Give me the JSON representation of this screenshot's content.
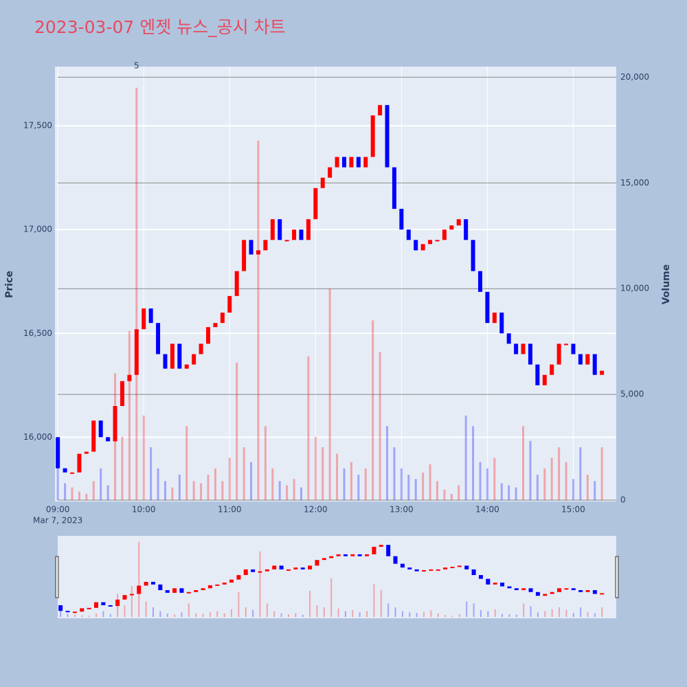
{
  "chart_data": {
    "type": "candlestick",
    "title": "2023-03-07 엔젯 뉴스_공시 차트",
    "subtitle": "Mar 7, 2023",
    "y_label": "Price",
    "y2_label": "Volume",
    "x": [
      "09:00",
      "09:05",
      "09:10",
      "09:15",
      "09:20",
      "09:25",
      "09:30",
      "09:35",
      "09:40",
      "09:45",
      "09:50",
      "09:55",
      "10:00",
      "10:05",
      "10:10",
      "10:15",
      "10:20",
      "10:25",
      "10:30",
      "10:35",
      "10:40",
      "10:45",
      "10:50",
      "10:55",
      "11:00",
      "11:05",
      "11:10",
      "11:15",
      "11:20",
      "11:25",
      "11:30",
      "11:35",
      "11:40",
      "11:45",
      "11:50",
      "11:55",
      "12:00",
      "12:05",
      "12:10",
      "12:15",
      "12:20",
      "12:25",
      "12:30",
      "12:35",
      "12:40",
      "12:45",
      "12:50",
      "12:55",
      "13:00",
      "13:05",
      "13:10",
      "13:15",
      "13:20",
      "13:25",
      "13:30",
      "13:35",
      "13:40",
      "13:45",
      "13:50",
      "13:55",
      "14:00",
      "14:05",
      "14:10",
      "14:15",
      "14:20",
      "14:25",
      "14:30",
      "14:35",
      "14:40",
      "14:45",
      "14:50",
      "14:55",
      "15:00",
      "15:05",
      "15:10",
      "15:15",
      "15:20"
    ],
    "open": [
      16000,
      15850,
      15830,
      15830,
      15920,
      15930,
      16080,
      16000,
      15980,
      16150,
      16270,
      16300,
      16520,
      16620,
      16550,
      16400,
      16330,
      16450,
      16330,
      16350,
      16400,
      16450,
      16530,
      16550,
      16600,
      16680,
      16800,
      16950,
      16880,
      16900,
      16950,
      17050,
      16950,
      16950,
      17000,
      16950,
      17050,
      17200,
      17250,
      17300,
      17350,
      17300,
      17350,
      17300,
      17350,
      17550,
      17600,
      17300,
      17100,
      17000,
      16950,
      16900,
      16930,
      16950,
      16950,
      17000,
      17020,
      17050,
      16950,
      16800,
      16700,
      16550,
      16600,
      16500,
      16450,
      16400,
      16450,
      16350,
      16250,
      16300,
      16350,
      16450,
      16450,
      16400,
      16350,
      16400,
      16300
    ],
    "close": [
      15850,
      15830,
      15830,
      15920,
      15930,
      16080,
      16000,
      15980,
      16150,
      16270,
      16300,
      16520,
      16620,
      16550,
      16400,
      16330,
      16450,
      16330,
      16350,
      16400,
      16450,
      16530,
      16550,
      16600,
      16680,
      16800,
      16950,
      16880,
      16900,
      16950,
      17050,
      16950,
      16950,
      17000,
      16950,
      17050,
      17200,
      17250,
      17300,
      17350,
      17300,
      17350,
      17300,
      17350,
      17550,
      17600,
      17300,
      17100,
      17000,
      16950,
      16900,
      16930,
      16950,
      16950,
      17000,
      17020,
      17050,
      16950,
      16800,
      16700,
      16550,
      16600,
      16500,
      16450,
      16400,
      16450,
      16350,
      16250,
      16300,
      16350,
      16450,
      16450,
      16400,
      16350,
      16400,
      16300,
      16320
    ],
    "volume": [
      2000,
      800,
      600,
      400,
      300,
      900,
      1500,
      700,
      6000,
      3000,
      8000,
      19500,
      4000,
      2500,
      1500,
      900,
      600,
      1200,
      3500,
      900,
      800,
      1200,
      1500,
      900,
      2000,
      6500,
      2500,
      1800,
      17000,
      3500,
      1500,
      900,
      700,
      1000,
      600,
      6800,
      3000,
      2500,
      10000,
      2200,
      1500,
      1800,
      1200,
      1500,
      8500,
      7000,
      3500,
      2500,
      1500,
      1200,
      1000,
      1300,
      1700,
      900,
      500,
      300,
      700,
      4000,
      3500,
      1800,
      1500,
      2000,
      800,
      700,
      600,
      3500,
      2800,
      1200,
      1500,
      2000,
      2500,
      1800,
      1000,
      2500,
      1200,
      900,
      2500
    ],
    "increasing_color": "#ff0000",
    "decreasing_color": "#0000ff",
    "xlim": [
      "08:58",
      "15:30"
    ],
    "xticks": [
      "09:00",
      "10:00",
      "11:00",
      "12:00",
      "13:00",
      "14:00",
      "15:00"
    ],
    "ylim": [
      15690,
      17785
    ],
    "yticks": [
      {
        "value": 16000,
        "label": "16,000"
      },
      {
        "value": 16500,
        "label": "16,500"
      },
      {
        "value": 17000,
        "label": "17,000"
      },
      {
        "value": 17500,
        "label": "17,500"
      }
    ],
    "y2lim": [
      0,
      20500
    ],
    "y2ticks": [
      0,
      {
        "value": 5000,
        "label": "5,000"
      },
      {
        "value": 10000,
        "label": "10,000"
      },
      {
        "value": 15000,
        "label": "15,000"
      },
      {
        "value": 20000,
        "label": "20,000"
      }
    ],
    "annotations": [
      {
        "text": "5",
        "x": "09:55"
      }
    ],
    "grid": true
  }
}
